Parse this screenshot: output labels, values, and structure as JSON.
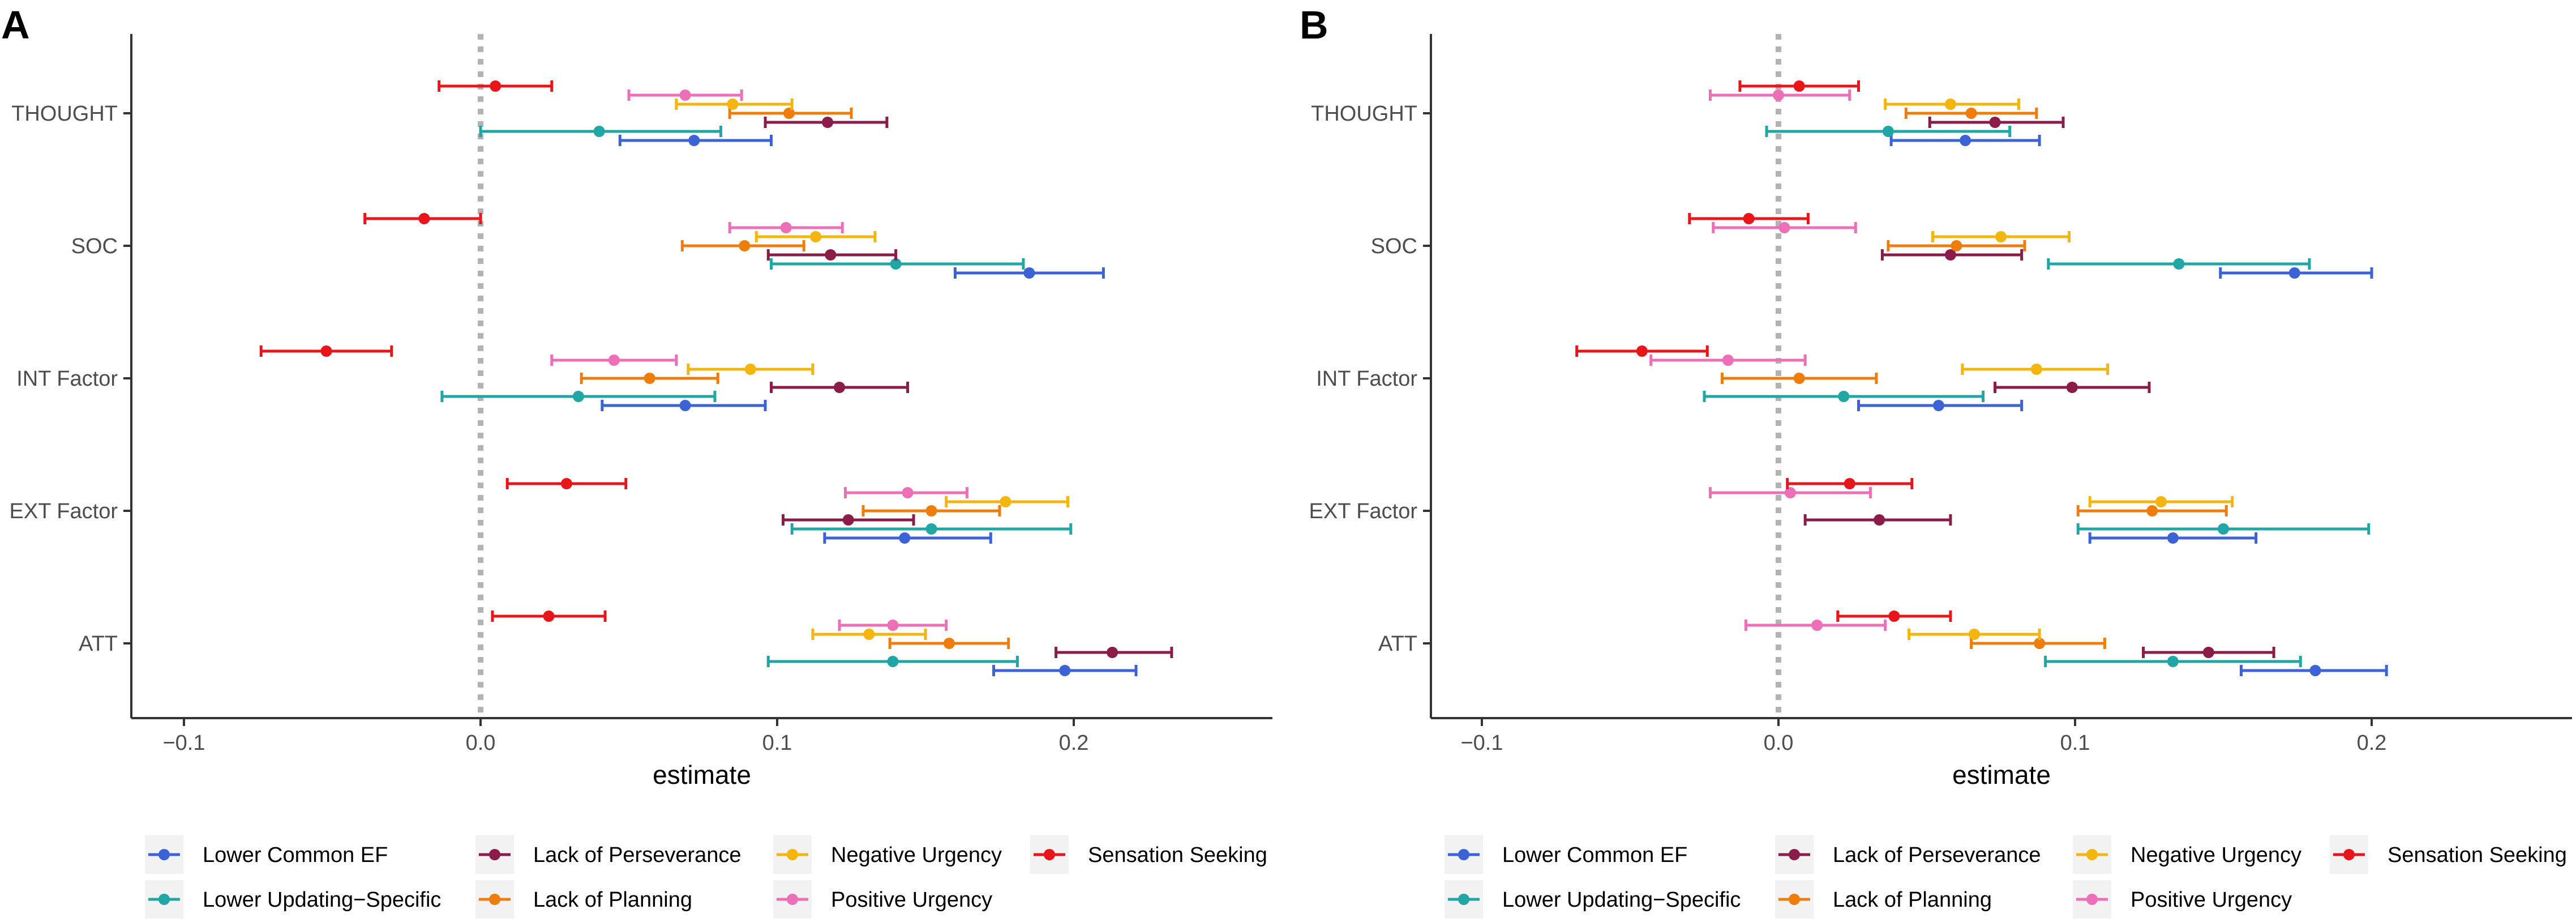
{
  "chart_data": [
    {
      "panel": "A",
      "type": "errorbar",
      "xlabel": "estimate",
      "xticks": [
        -0.1,
        0.0,
        0.1,
        0.2
      ],
      "xtick_labels": [
        "−0.1",
        "0.0",
        "0.1",
        "0.2"
      ],
      "xlim": [
        -0.12,
        0.26
      ],
      "categories": [
        "THOUGHT",
        "SOC",
        "INT Factor",
        "EXT Factor",
        "ATT"
      ],
      "reference_line": 0,
      "legend_position": "bottom",
      "series": [
        {
          "name": "Lower Common EF",
          "color": "#3b62d6",
          "points": [
            {
              "category": "THOUGHT",
              "estimate": 0.072,
              "lo": 0.047,
              "hi": 0.098
            },
            {
              "category": "SOC",
              "estimate": 0.185,
              "lo": 0.16,
              "hi": 0.21
            },
            {
              "category": "INT Factor",
              "estimate": 0.069,
              "lo": 0.041,
              "hi": 0.096
            },
            {
              "category": "EXT Factor",
              "estimate": 0.143,
              "lo": 0.116,
              "hi": 0.172
            },
            {
              "category": "ATT",
              "estimate": 0.197,
              "lo": 0.173,
              "hi": 0.221
            }
          ]
        },
        {
          "name": "Lower Updating−Specific",
          "color": "#21a6a6",
          "points": [
            {
              "category": "THOUGHT",
              "estimate": 0.04,
              "lo": 0.0,
              "hi": 0.081
            },
            {
              "category": "SOC",
              "estimate": 0.14,
              "lo": 0.098,
              "hi": 0.183
            },
            {
              "category": "INT Factor",
              "estimate": 0.033,
              "lo": -0.013,
              "hi": 0.079
            },
            {
              "category": "EXT Factor",
              "estimate": 0.152,
              "lo": 0.105,
              "hi": 0.199
            },
            {
              "category": "ATT",
              "estimate": 0.139,
              "lo": 0.097,
              "hi": 0.181
            }
          ]
        },
        {
          "name": "Lack of Perseverance",
          "color": "#8b1c4a",
          "points": [
            {
              "category": "THOUGHT",
              "estimate": 0.117,
              "lo": 0.096,
              "hi": 0.137
            },
            {
              "category": "SOC",
              "estimate": 0.118,
              "lo": 0.097,
              "hi": 0.14
            },
            {
              "category": "INT Factor",
              "estimate": 0.121,
              "lo": 0.098,
              "hi": 0.144
            },
            {
              "category": "EXT Factor",
              "estimate": 0.124,
              "lo": 0.102,
              "hi": 0.146
            },
            {
              "category": "ATT",
              "estimate": 0.213,
              "lo": 0.194,
              "hi": 0.233
            }
          ]
        },
        {
          "name": "Lack of Planning",
          "color": "#ef7d0c",
          "points": [
            {
              "category": "THOUGHT",
              "estimate": 0.104,
              "lo": 0.084,
              "hi": 0.125
            },
            {
              "category": "SOC",
              "estimate": 0.089,
              "lo": 0.068,
              "hi": 0.109
            },
            {
              "category": "INT Factor",
              "estimate": 0.057,
              "lo": 0.034,
              "hi": 0.08
            },
            {
              "category": "EXT Factor",
              "estimate": 0.152,
              "lo": 0.129,
              "hi": 0.175
            },
            {
              "category": "ATT",
              "estimate": 0.158,
              "lo": 0.138,
              "hi": 0.178
            }
          ]
        },
        {
          "name": "Negative Urgency",
          "color": "#f5b50f",
          "points": [
            {
              "category": "THOUGHT",
              "estimate": 0.085,
              "lo": 0.066,
              "hi": 0.105
            },
            {
              "category": "SOC",
              "estimate": 0.113,
              "lo": 0.093,
              "hi": 0.133
            },
            {
              "category": "INT Factor",
              "estimate": 0.091,
              "lo": 0.07,
              "hi": 0.112
            },
            {
              "category": "EXT Factor",
              "estimate": 0.177,
              "lo": 0.157,
              "hi": 0.198
            },
            {
              "category": "ATT",
              "estimate": 0.131,
              "lo": 0.112,
              "hi": 0.15
            }
          ]
        },
        {
          "name": "Positive Urgency",
          "color": "#ec6fb8",
          "points": [
            {
              "category": "THOUGHT",
              "estimate": 0.069,
              "lo": 0.05,
              "hi": 0.088
            },
            {
              "category": "SOC",
              "estimate": 0.103,
              "lo": 0.084,
              "hi": 0.122
            },
            {
              "category": "INT Factor",
              "estimate": 0.045,
              "lo": 0.024,
              "hi": 0.066
            },
            {
              "category": "EXT Factor",
              "estimate": 0.144,
              "lo": 0.123,
              "hi": 0.164
            },
            {
              "category": "ATT",
              "estimate": 0.139,
              "lo": 0.121,
              "hi": 0.157
            }
          ]
        },
        {
          "name": "Sensation Seeking",
          "color": "#e8161b",
          "points": [
            {
              "category": "THOUGHT",
              "estimate": 0.005,
              "lo": -0.014,
              "hi": 0.024
            },
            {
              "category": "SOC",
              "estimate": -0.019,
              "lo": -0.039,
              "hi": 0.0
            },
            {
              "category": "INT Factor",
              "estimate": -0.052,
              "lo": -0.074,
              "hi": -0.03
            },
            {
              "category": "EXT Factor",
              "estimate": 0.029,
              "lo": 0.009,
              "hi": 0.049
            },
            {
              "category": "ATT",
              "estimate": 0.023,
              "lo": 0.004,
              "hi": 0.042
            }
          ]
        }
      ]
    },
    {
      "panel": "B",
      "type": "errorbar",
      "xlabel": "estimate",
      "xticks": [
        -0.1,
        0.0,
        0.1,
        0.2
      ],
      "xtick_labels": [
        "−0.1",
        "0.0",
        "0.1",
        "0.2"
      ],
      "xlim": [
        -0.12,
        0.26
      ],
      "categories": [
        "THOUGHT",
        "SOC",
        "INT Factor",
        "EXT Factor",
        "ATT"
      ],
      "reference_line": 0,
      "legend_position": "bottom",
      "series": [
        {
          "name": "Lower Common EF",
          "color": "#3b62d6",
          "points": [
            {
              "category": "THOUGHT",
              "estimate": 0.063,
              "lo": 0.038,
              "hi": 0.088
            },
            {
              "category": "SOC",
              "estimate": 0.174,
              "lo": 0.149,
              "hi": 0.2
            },
            {
              "category": "INT Factor",
              "estimate": 0.054,
              "lo": 0.027,
              "hi": 0.082
            },
            {
              "category": "EXT Factor",
              "estimate": 0.133,
              "lo": 0.105,
              "hi": 0.161
            },
            {
              "category": "ATT",
              "estimate": 0.181,
              "lo": 0.156,
              "hi": 0.205
            }
          ]
        },
        {
          "name": "Lower Updating−Specific",
          "color": "#21a6a6",
          "points": [
            {
              "category": "THOUGHT",
              "estimate": 0.037,
              "lo": -0.004,
              "hi": 0.078
            },
            {
              "category": "SOC",
              "estimate": 0.135,
              "lo": 0.091,
              "hi": 0.179
            },
            {
              "category": "INT Factor",
              "estimate": 0.022,
              "lo": -0.025,
              "hi": 0.069
            },
            {
              "category": "EXT Factor",
              "estimate": 0.15,
              "lo": 0.101,
              "hi": 0.199
            },
            {
              "category": "ATT",
              "estimate": 0.133,
              "lo": 0.09,
              "hi": 0.176
            }
          ]
        },
        {
          "name": "Lack of Perseverance",
          "color": "#8b1c4a",
          "points": [
            {
              "category": "THOUGHT",
              "estimate": 0.073,
              "lo": 0.051,
              "hi": 0.096
            },
            {
              "category": "SOC",
              "estimate": 0.058,
              "lo": 0.035,
              "hi": 0.082
            },
            {
              "category": "INT Factor",
              "estimate": 0.099,
              "lo": 0.073,
              "hi": 0.125
            },
            {
              "category": "EXT Factor",
              "estimate": 0.034,
              "lo": 0.009,
              "hi": 0.058
            },
            {
              "category": "ATT",
              "estimate": 0.145,
              "lo": 0.123,
              "hi": 0.167
            }
          ]
        },
        {
          "name": "Lack of Planning",
          "color": "#ef7d0c",
          "points": [
            {
              "category": "THOUGHT",
              "estimate": 0.065,
              "lo": 0.043,
              "hi": 0.087
            },
            {
              "category": "SOC",
              "estimate": 0.06,
              "lo": 0.037,
              "hi": 0.083
            },
            {
              "category": "INT Factor",
              "estimate": 0.007,
              "lo": -0.019,
              "hi": 0.033
            },
            {
              "category": "EXT Factor",
              "estimate": 0.126,
              "lo": 0.101,
              "hi": 0.151
            },
            {
              "category": "ATT",
              "estimate": 0.088,
              "lo": 0.065,
              "hi": 0.11
            }
          ]
        },
        {
          "name": "Negative Urgency",
          "color": "#f5b50f",
          "points": [
            {
              "category": "THOUGHT",
              "estimate": 0.058,
              "lo": 0.036,
              "hi": 0.081
            },
            {
              "category": "SOC",
              "estimate": 0.075,
              "lo": 0.052,
              "hi": 0.098
            },
            {
              "category": "INT Factor",
              "estimate": 0.087,
              "lo": 0.062,
              "hi": 0.111
            },
            {
              "category": "EXT Factor",
              "estimate": 0.129,
              "lo": 0.105,
              "hi": 0.153
            },
            {
              "category": "ATT",
              "estimate": 0.066,
              "lo": 0.044,
              "hi": 0.088
            }
          ]
        },
        {
          "name": "Positive Urgency",
          "color": "#ec6fb8",
          "points": [
            {
              "category": "THOUGHT",
              "estimate": 0.0,
              "lo": -0.023,
              "hi": 0.024
            },
            {
              "category": "SOC",
              "estimate": 0.002,
              "lo": -0.022,
              "hi": 0.026
            },
            {
              "category": "INT Factor",
              "estimate": -0.017,
              "lo": -0.043,
              "hi": 0.009
            },
            {
              "category": "EXT Factor",
              "estimate": 0.004,
              "lo": -0.023,
              "hi": 0.031
            },
            {
              "category": "ATT",
              "estimate": 0.013,
              "lo": -0.011,
              "hi": 0.036
            }
          ]
        },
        {
          "name": "Sensation Seeking",
          "color": "#e8161b",
          "points": [
            {
              "category": "THOUGHT",
              "estimate": 0.007,
              "lo": -0.013,
              "hi": 0.027
            },
            {
              "category": "SOC",
              "estimate": -0.01,
              "lo": -0.03,
              "hi": 0.01
            },
            {
              "category": "INT Factor",
              "estimate": -0.046,
              "lo": -0.068,
              "hi": -0.024
            },
            {
              "category": "EXT Factor",
              "estimate": 0.024,
              "lo": 0.003,
              "hi": 0.045
            },
            {
              "category": "ATT",
              "estimate": 0.039,
              "lo": 0.02,
              "hi": 0.058
            }
          ]
        }
      ]
    }
  ]
}
